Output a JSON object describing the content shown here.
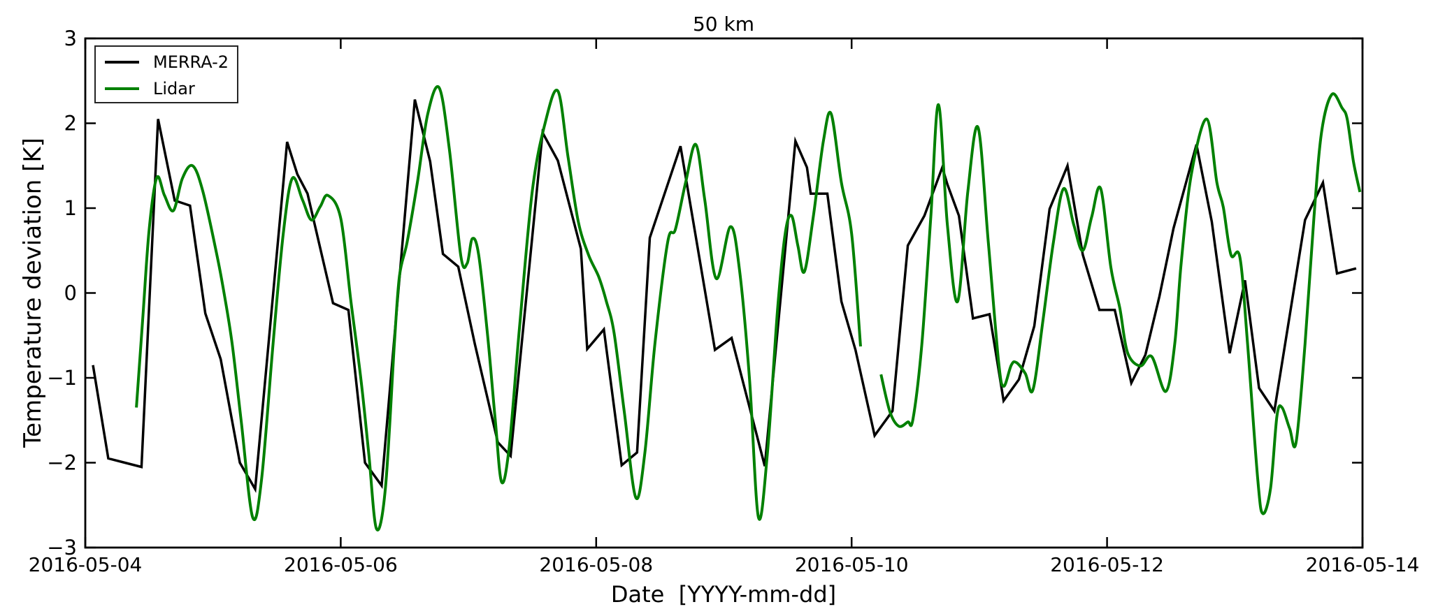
{
  "chart_data": {
    "type": "line",
    "title": "50 km",
    "xlabel": "Date  [YYYY-mm-dd]",
    "ylabel": "Temperature deviation [K]",
    "x_epoch": "2016-05-04",
    "x_unit": "days since 2016-05-04 00:00",
    "xlim_days": [
      0,
      10
    ],
    "ylim": [
      -3,
      3
    ],
    "grid": false,
    "legend_position": "upper left",
    "tick_style": "inward, all four spines",
    "x_ticks": [
      {
        "day": 0,
        "label": "2016-05-04"
      },
      {
        "day": 2,
        "label": "2016-05-06"
      },
      {
        "day": 4,
        "label": "2016-05-08"
      },
      {
        "day": 6,
        "label": "2016-05-10"
      },
      {
        "day": 8,
        "label": "2016-05-12"
      },
      {
        "day": 10,
        "label": "2016-05-14"
      }
    ],
    "y_ticks": [
      {
        "v": 3,
        "label": "3"
      },
      {
        "v": 2,
        "label": "2"
      },
      {
        "v": 1,
        "label": "1"
      },
      {
        "v": 0,
        "label": "0"
      },
      {
        "v": -1,
        "label": "−1"
      },
      {
        "v": -2,
        "label": "−2"
      },
      {
        "v": -3,
        "label": "−3"
      }
    ],
    "series": [
      {
        "name": "MERRA-2",
        "color": "#000000",
        "line_width": 3.5,
        "interp": "linear",
        "segments": [
          [
            [
              0.06,
              -0.85
            ],
            [
              0.18,
              -1.95
            ],
            [
              0.31,
              -2.0
            ],
            [
              0.44,
              -2.05
            ],
            [
              0.57,
              2.05
            ],
            [
              0.7,
              1.09
            ],
            [
              0.82,
              1.03
            ],
            [
              0.94,
              -0.24
            ],
            [
              1.06,
              -0.78
            ],
            [
              1.21,
              -2.0
            ],
            [
              1.33,
              -2.31
            ],
            [
              1.58,
              1.78
            ],
            [
              1.66,
              1.4
            ],
            [
              1.74,
              1.17
            ],
            [
              1.94,
              -0.12
            ],
            [
              2.06,
              -0.2
            ],
            [
              2.19,
              -2.0
            ],
            [
              2.32,
              -2.27
            ],
            [
              2.58,
              2.28
            ],
            [
              2.7,
              1.55
            ],
            [
              2.8,
              0.46
            ],
            [
              2.92,
              0.31
            ],
            [
              3.05,
              -0.6
            ],
            [
              3.23,
              -1.76
            ],
            [
              3.33,
              -1.92
            ],
            [
              3.58,
              1.89
            ],
            [
              3.7,
              1.56
            ],
            [
              3.88,
              0.52
            ],
            [
              3.93,
              -0.66
            ],
            [
              4.06,
              -0.43
            ],
            [
              4.2,
              -2.03
            ],
            [
              4.32,
              -1.88
            ],
            [
              4.42,
              0.65
            ],
            [
              4.66,
              1.73
            ],
            [
              4.93,
              -0.67
            ],
            [
              5.06,
              -0.53
            ],
            [
              5.32,
              -2.04
            ],
            [
              5.56,
              1.79
            ],
            [
              5.65,
              1.48
            ],
            [
              5.68,
              1.17
            ],
            [
              5.81,
              1.17
            ],
            [
              5.92,
              -0.1
            ],
            [
              6.03,
              -0.67
            ],
            [
              6.18,
              -1.68
            ],
            [
              6.32,
              -1.39
            ],
            [
              6.44,
              0.56
            ],
            [
              6.57,
              0.91
            ],
            [
              6.71,
              1.48
            ],
            [
              6.75,
              1.28
            ],
            [
              6.84,
              0.91
            ],
            [
              6.95,
              -0.3
            ],
            [
              7.08,
              -0.25
            ],
            [
              7.19,
              -1.27
            ],
            [
              7.31,
              -1.02
            ],
            [
              7.43,
              -0.39
            ],
            [
              7.55,
              0.99
            ],
            [
              7.69,
              1.5
            ],
            [
              7.81,
              0.45
            ],
            [
              7.94,
              -0.2
            ],
            [
              8.06,
              -0.2
            ],
            [
              8.19,
              -1.06
            ],
            [
              8.3,
              -0.73
            ],
            [
              8.41,
              -0.04
            ],
            [
              8.52,
              0.76
            ],
            [
              8.7,
              1.75
            ],
            [
              8.82,
              0.84
            ],
            [
              8.96,
              -0.71
            ],
            [
              9.08,
              0.15
            ],
            [
              9.19,
              -1.12
            ],
            [
              9.31,
              -1.39
            ],
            [
              9.55,
              0.86
            ],
            [
              9.69,
              1.3
            ],
            [
              9.8,
              0.23
            ],
            [
              9.95,
              0.29
            ]
          ]
        ]
      },
      {
        "name": "Lidar",
        "color": "#008000",
        "line_width": 4,
        "interp": "smooth",
        "segments": [
          [
            [
              0.4,
              -1.35
            ],
            [
              0.45,
              -0.3
            ],
            [
              0.5,
              0.75
            ],
            [
              0.56,
              1.36
            ],
            [
              0.62,
              1.15
            ],
            [
              0.69,
              0.97
            ],
            [
              0.76,
              1.35
            ],
            [
              0.84,
              1.5
            ],
            [
              0.92,
              1.2
            ],
            [
              1.03,
              0.45
            ],
            [
              1.09,
              -0.03
            ],
            [
              1.15,
              -0.6
            ],
            [
              1.22,
              -1.5
            ],
            [
              1.31,
              -2.64
            ],
            [
              1.38,
              -2.2
            ],
            [
              1.47,
              -0.6
            ],
            [
              1.55,
              0.7
            ],
            [
              1.62,
              1.35
            ],
            [
              1.7,
              1.1
            ],
            [
              1.77,
              0.86
            ],
            [
              1.84,
              1.02
            ],
            [
              1.9,
              1.15
            ],
            [
              2.0,
              0.88
            ],
            [
              2.08,
              -0.1
            ],
            [
              2.16,
              -1.04
            ],
            [
              2.22,
              -1.9
            ],
            [
              2.28,
              -2.78
            ],
            [
              2.35,
              -2.3
            ],
            [
              2.42,
              -0.6
            ],
            [
              2.46,
              0.2
            ],
            [
              2.52,
              0.6
            ],
            [
              2.6,
              1.3
            ],
            [
              2.68,
              2.1
            ],
            [
              2.77,
              2.42
            ],
            [
              2.85,
              1.7
            ],
            [
              2.94,
              0.44
            ],
            [
              2.99,
              0.35
            ],
            [
              3.03,
              0.64
            ],
            [
              3.08,
              0.45
            ],
            [
              3.15,
              -0.5
            ],
            [
              3.21,
              -1.5
            ],
            [
              3.26,
              -2.23
            ],
            [
              3.32,
              -1.8
            ],
            [
              3.4,
              -0.4
            ],
            [
              3.5,
              1.2
            ],
            [
              3.6,
              2.0
            ],
            [
              3.7,
              2.38
            ],
            [
              3.78,
              1.6
            ],
            [
              3.86,
              0.84
            ],
            [
              3.94,
              0.45
            ],
            [
              4.02,
              0.19
            ],
            [
              4.08,
              -0.1
            ],
            [
              4.14,
              -0.47
            ],
            [
              4.22,
              -1.4
            ],
            [
              4.31,
              -2.41
            ],
            [
              4.38,
              -1.9
            ],
            [
              4.46,
              -0.6
            ],
            [
              4.56,
              0.6
            ],
            [
              4.62,
              0.75
            ],
            [
              4.7,
              1.3
            ],
            [
              4.78,
              1.75
            ],
            [
              4.85,
              1.1
            ],
            [
              4.94,
              0.17
            ],
            [
              5.05,
              0.78
            ],
            [
              5.12,
              0.3
            ],
            [
              5.2,
              -1.0
            ],
            [
              5.27,
              -2.64
            ],
            [
              5.34,
              -1.9
            ],
            [
              5.42,
              -0.2
            ],
            [
              5.48,
              0.7
            ],
            [
              5.53,
              0.91
            ],
            [
              5.58,
              0.55
            ],
            [
              5.63,
              0.25
            ],
            [
              5.7,
              0.9
            ],
            [
              5.78,
              1.8
            ],
            [
              5.84,
              2.11
            ],
            [
              5.92,
              1.3
            ],
            [
              6.0,
              0.7
            ],
            [
              6.07,
              -0.63
            ]
          ],
          [
            [
              6.23,
              -0.96
            ],
            [
              6.3,
              -1.4
            ],
            [
              6.37,
              -1.57
            ],
            [
              6.44,
              -1.52
            ],
            [
              6.48,
              -1.49
            ],
            [
              6.55,
              -0.6
            ],
            [
              6.62,
              0.9
            ],
            [
              6.68,
              2.22
            ],
            [
              6.75,
              0.8
            ],
            [
              6.83,
              -0.1
            ],
            [
              6.91,
              1.2
            ],
            [
              6.99,
              1.95
            ],
            [
              7.07,
              0.6
            ],
            [
              7.15,
              -0.8
            ],
            [
              7.19,
              -1.1
            ],
            [
              7.25,
              -0.85
            ],
            [
              7.29,
              -0.82
            ],
            [
              7.36,
              -0.95
            ],
            [
              7.42,
              -1.14
            ],
            [
              7.5,
              -0.3
            ],
            [
              7.58,
              0.6
            ],
            [
              7.66,
              1.23
            ],
            [
              7.74,
              0.8
            ],
            [
              7.81,
              0.5
            ],
            [
              7.88,
              0.9
            ],
            [
              7.95,
              1.23
            ],
            [
              8.03,
              0.3
            ],
            [
              8.1,
              -0.18
            ],
            [
              8.16,
              -0.7
            ],
            [
              8.26,
              -0.86
            ],
            [
              8.35,
              -0.75
            ],
            [
              8.46,
              -1.16
            ],
            [
              8.53,
              -0.6
            ],
            [
              8.58,
              0.35
            ],
            [
              8.66,
              1.4
            ],
            [
              8.78,
              2.05
            ],
            [
              8.86,
              1.3
            ],
            [
              8.91,
              1.01
            ],
            [
              8.97,
              0.45
            ],
            [
              9.04,
              0.42
            ],
            [
              9.1,
              -0.6
            ],
            [
              9.18,
              -2.2
            ],
            [
              9.22,
              -2.6
            ],
            [
              9.28,
              -2.3
            ],
            [
              9.33,
              -1.45
            ],
            [
              9.37,
              -1.35
            ],
            [
              9.43,
              -1.6
            ],
            [
              9.48,
              -1.76
            ],
            [
              9.55,
              -0.6
            ],
            [
              9.62,
              0.9
            ],
            [
              9.68,
              1.9
            ],
            [
              9.76,
              2.34
            ],
            [
              9.84,
              2.18
            ],
            [
              9.88,
              2.05
            ],
            [
              9.93,
              1.54
            ],
            [
              9.98,
              1.19
            ]
          ]
        ]
      }
    ]
  }
}
